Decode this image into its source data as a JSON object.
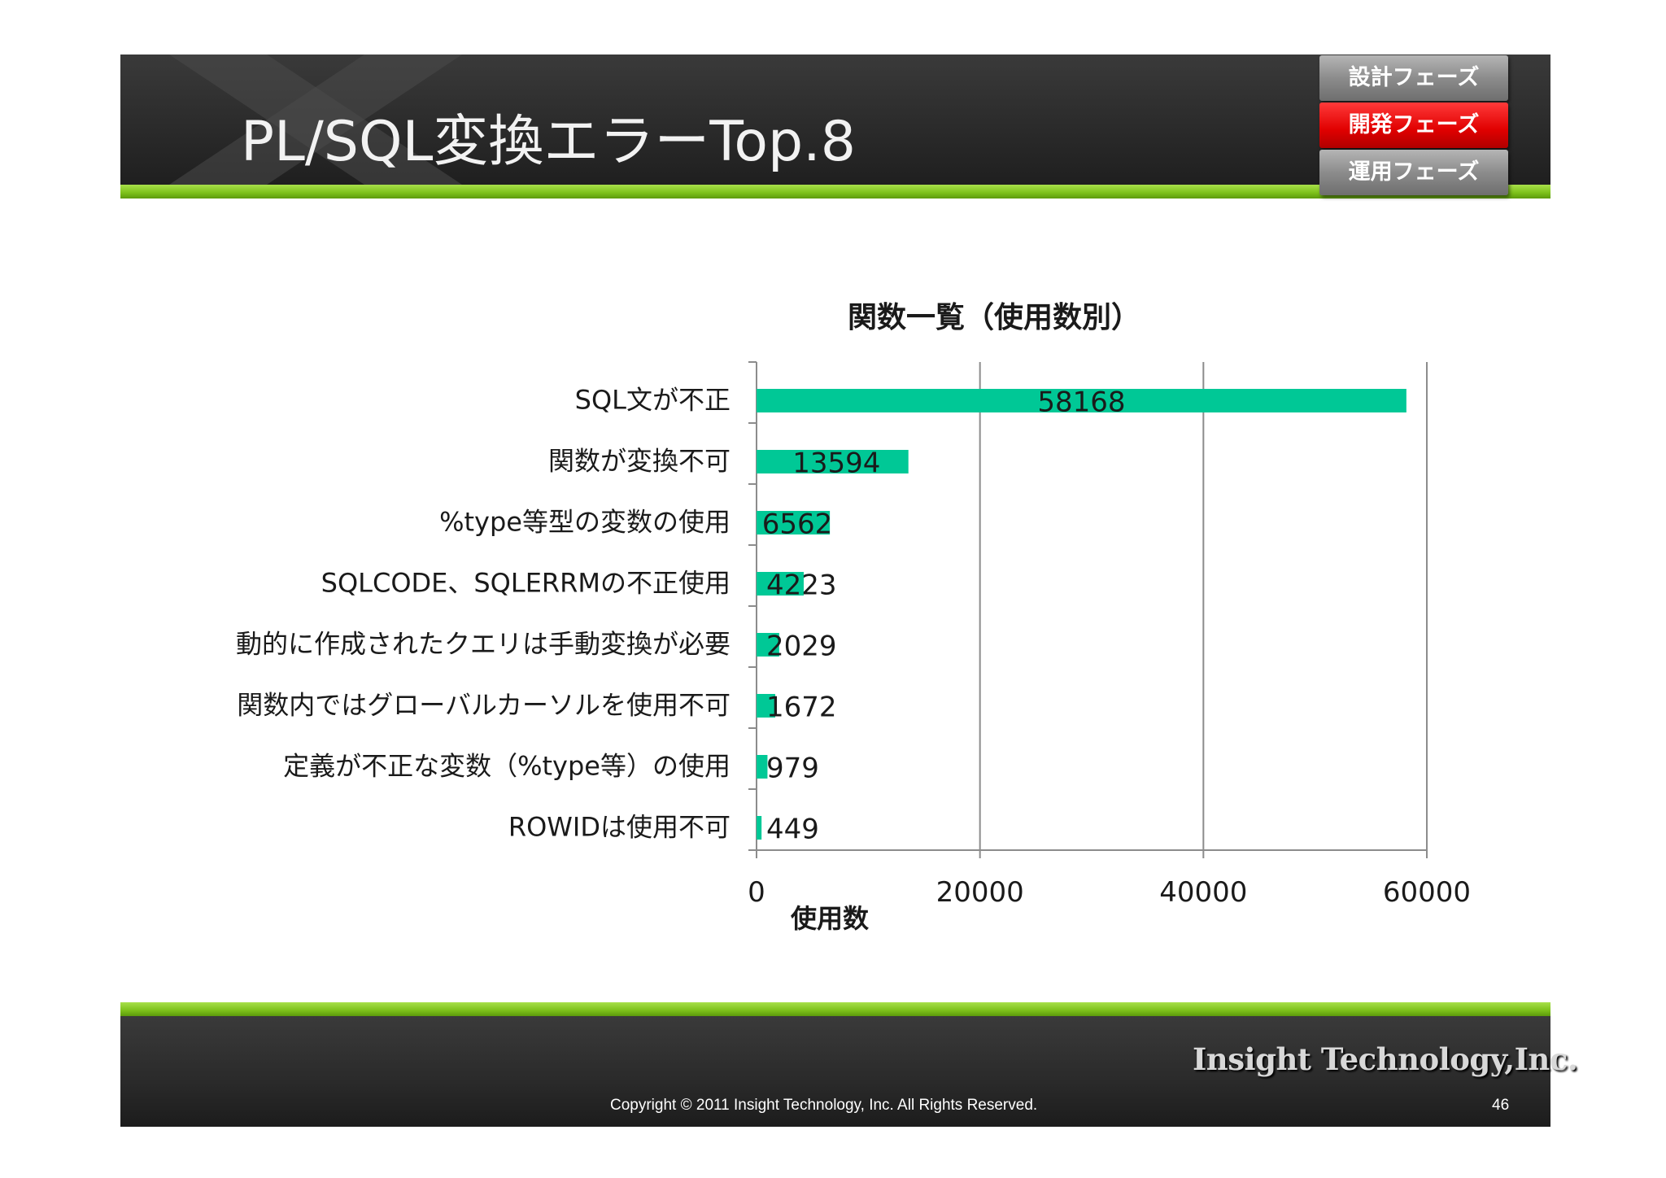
{
  "header": {
    "title": "PL/SQL変換エラーTop.8"
  },
  "phases": [
    {
      "label": "設計フェーズ",
      "active": false
    },
    {
      "label": "開発フェーズ",
      "active": true
    },
    {
      "label": "運用フェーズ",
      "active": false
    }
  ],
  "colors": {
    "bar": "#00c896",
    "active_phase": "#e00000",
    "accent_green": "#7cc01a"
  },
  "chart_data": {
    "type": "bar",
    "orientation": "horizontal",
    "title": "関数一覧（使用数別）",
    "xlabel": "使用数",
    "ylabel": "",
    "categories": [
      "SQL文が不正",
      "関数が変換不可",
      "%type等型の変数の使用",
      "SQLCODE、SQLERRMの不正使用",
      "動的に作成されたクエリは手動変換が必要",
      "関数内ではグローバルカーソルを使用不可",
      "定義が不正な変数（%type等）の使用",
      "ROWIDは使用不可"
    ],
    "values": [
      58168,
      13594,
      6562,
      4223,
      2029,
      1672,
      979,
      449
    ],
    "data_labels": [
      "58168",
      "13594",
      "6562",
      "4223",
      "2029",
      "1672",
      "979",
      "449"
    ],
    "xlim": [
      0,
      60000
    ],
    "xticks": [
      0,
      20000,
      40000,
      60000
    ],
    "xtick_labels": [
      "0",
      "20000",
      "40000",
      "60000"
    ],
    "grid": true,
    "legend": "none"
  },
  "footer": {
    "logo": "Insight Technology,Inc.",
    "copyright": "Copyright © 2011 Insight Technology, Inc. All Rights Reserved.",
    "page": "46"
  }
}
